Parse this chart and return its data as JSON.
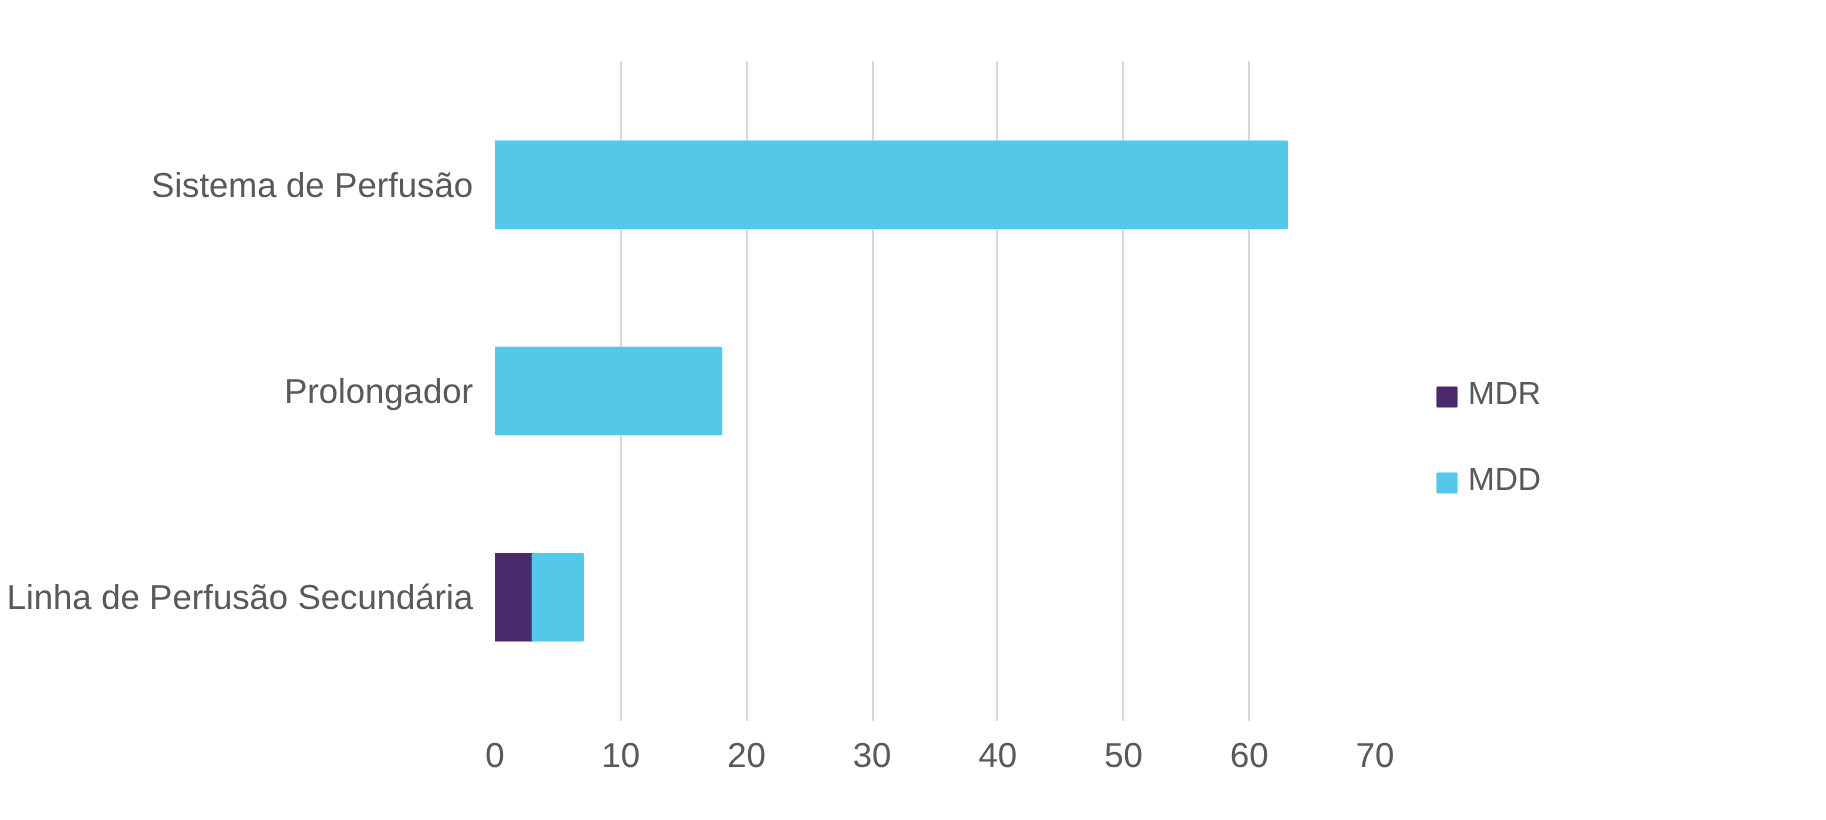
{
  "chart_data": {
    "type": "bar",
    "orientation": "horizontal",
    "stacked": true,
    "categories": [
      "Sistema de Perfusão",
      "Prolongador",
      "Linha de Perfusão Secundária"
    ],
    "series": [
      {
        "name": "MDR",
        "color": "#4b2a6b",
        "values": [
          0,
          0,
          3
        ]
      },
      {
        "name": "MDD",
        "color": "#54c8e8",
        "values": [
          63,
          18,
          4
        ]
      }
    ],
    "xlim": [
      0,
      70
    ],
    "xticks": [
      0,
      10,
      20,
      30,
      40,
      50,
      60,
      70
    ],
    "grid": "x",
    "legend": "right"
  }
}
